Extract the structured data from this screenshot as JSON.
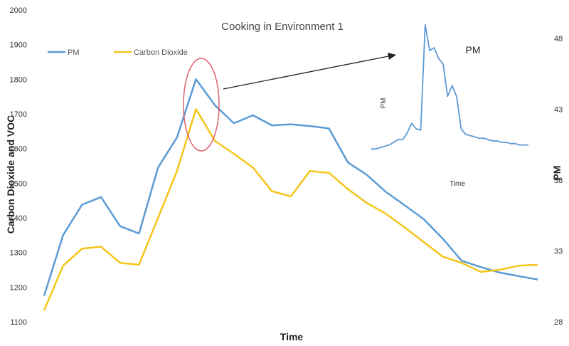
{
  "chart_data": {
    "type": "line",
    "title": "Cooking in Environment 1",
    "xlabel": "Time",
    "ylabel": "Carbon Dioxide and VOC",
    "y2label": "PM",
    "ylim": [
      1100,
      2000
    ],
    "y2lim": [
      28,
      50
    ],
    "yticks": [
      "1100",
      "1200",
      "1300",
      "1400",
      "1500",
      "1600",
      "1700",
      "1800",
      "1900",
      "2000"
    ],
    "y2ticks": [
      "28",
      "33",
      "38",
      "43",
      "48"
    ],
    "legend": {
      "position": "top-left"
    },
    "grid": false,
    "colors": {
      "pm": "#5b9bd5",
      "co2": "#f5c518",
      "highlight": "#e06070",
      "arrow": "#222222"
    },
    "series": [
      {
        "name": "PM",
        "color": "#5b9bd5",
        "values": [
          1175,
          1350,
          1438,
          1460,
          1376,
          1355,
          1545,
          1632,
          1800,
          1725,
          1673,
          1696,
          1667,
          1670,
          1665,
          1658,
          1560,
          1524,
          1475,
          1436,
          1396,
          1340,
          1276,
          1258,
          1242,
          1232,
          1222
        ]
      },
      {
        "name": "Carbon Dioxide",
        "color": "#f5c518",
        "values": [
          1133,
          1262,
          1311,
          1317,
          1270,
          1265,
          1400,
          1535,
          1714,
          1622,
          1585,
          1545,
          1477,
          1462,
          1535,
          1530,
          1483,
          1443,
          1412,
          1372,
          1330,
          1288,
          1270,
          1244,
          1250,
          1262,
          1265
        ]
      }
    ],
    "inset": {
      "title": "PM",
      "xlabel": "Time",
      "ylabel": "PM",
      "series": [
        {
          "name": "PM",
          "color": "#5b9bd5",
          "values": [
            40.3,
            40.3,
            40.4,
            40.5,
            40.6,
            40.8,
            41.0,
            41.0,
            41.5,
            42.2,
            41.8,
            41.7,
            49.5,
            47.6,
            47.8,
            47.0,
            46.6,
            44.2,
            45.0,
            44.2,
            41.8,
            41.4,
            41.3,
            41.2,
            41.1,
            41.1,
            41.0,
            40.9,
            40.9,
            40.8,
            40.8,
            40.7,
            40.7,
            40.6,
            40.6,
            40.6
          ]
        }
      ]
    }
  }
}
